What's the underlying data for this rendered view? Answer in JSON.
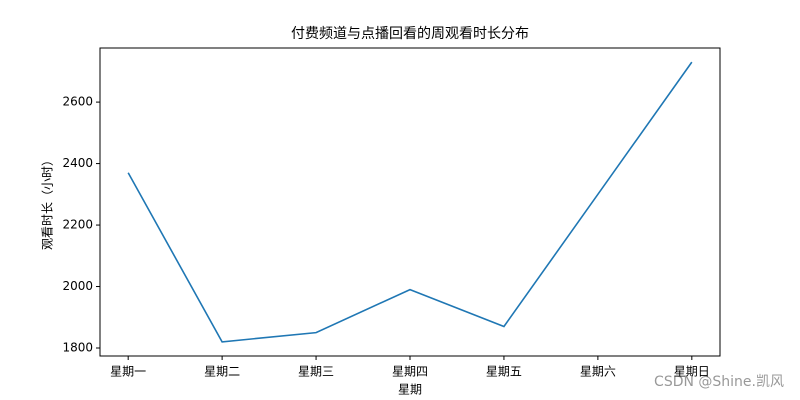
{
  "chart_data": {
    "type": "line",
    "title": "付费频道与点播回看的周观看时长分布",
    "x_label": "星期",
    "y_label": "观看时长（小时）",
    "categories": [
      "星期一",
      "星期二",
      "星期三",
      "星期四",
      "星期五",
      "星期六",
      "星期日"
    ],
    "values": [
      2370,
      1820,
      1850,
      1990,
      1870,
      2300,
      2730
    ],
    "color": "#1f77b4",
    "ylim": [
      1774,
      2776
    ],
    "yticks": [
      1800,
      2000,
      2200,
      2400,
      2600
    ],
    "grid": false,
    "watermark": "CSDN @Shine.凯风"
  }
}
